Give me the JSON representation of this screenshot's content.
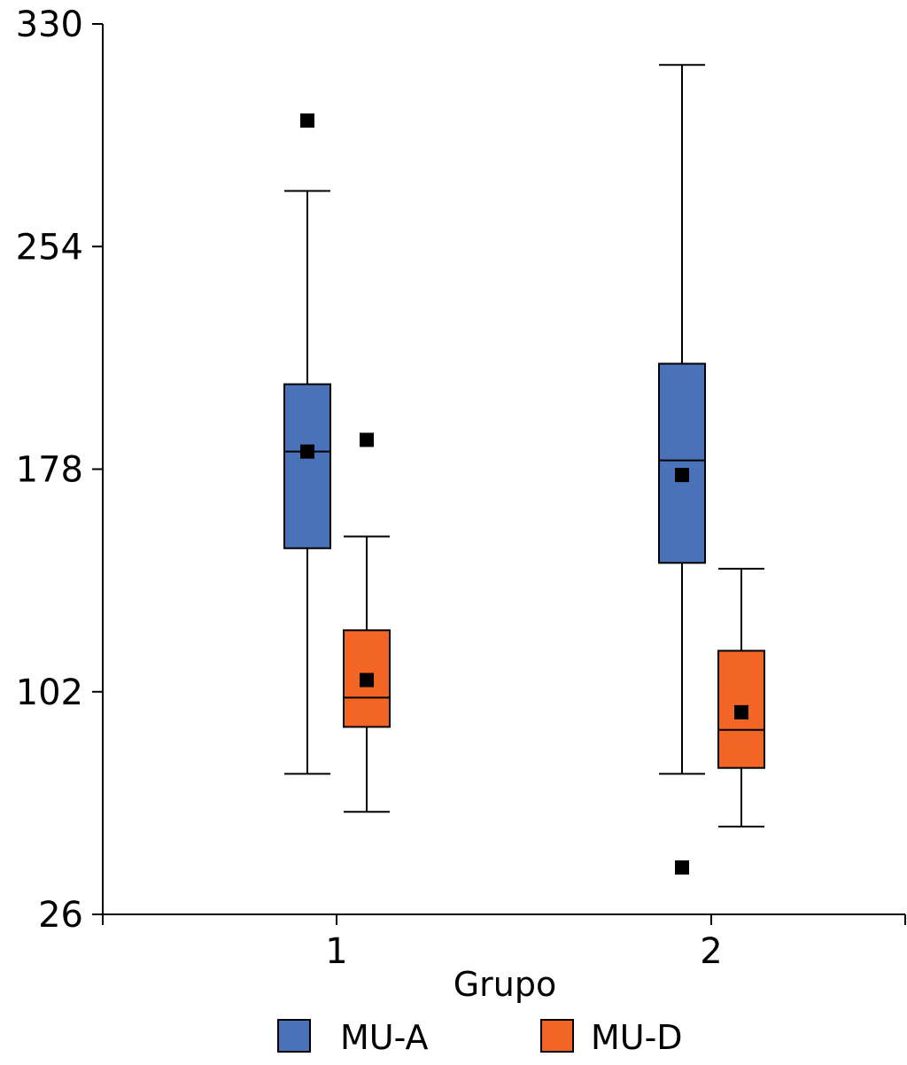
{
  "chart_data": {
    "type": "boxplot",
    "title": "",
    "xlabel": "Grupo",
    "ylabel": "",
    "categories": [
      "1",
      "2"
    ],
    "ylim": [
      26,
      330
    ],
    "yticks": [
      "26",
      "102",
      "178",
      "254",
      "330"
    ],
    "legend_position": "bottom",
    "series": [
      {
        "name": "MU-A",
        "color": "#4a72b8",
        "boxes": [
          {
            "category": "1",
            "whisker_low": 74,
            "q1": 151,
            "median": 184,
            "q3": 207,
            "whisker_high": 273,
            "mean": 184,
            "outliers": [
              297
            ]
          },
          {
            "category": "2",
            "whisker_low": 74,
            "q1": 146,
            "median": 181,
            "q3": 214,
            "whisker_high": 316,
            "mean": 176,
            "outliers": [
              42
            ]
          }
        ]
      },
      {
        "name": "MU-D",
        "color": "#f26524",
        "boxes": [
          {
            "category": "1",
            "whisker_low": 61,
            "q1": 90,
            "median": 100,
            "q3": 123,
            "whisker_high": 155,
            "mean": 106,
            "outliers": [
              188
            ]
          },
          {
            "category": "2",
            "whisker_low": 56,
            "q1": 76,
            "median": 89,
            "q3": 116,
            "whisker_high": 144,
            "mean": 95,
            "outliers": []
          }
        ]
      }
    ]
  }
}
